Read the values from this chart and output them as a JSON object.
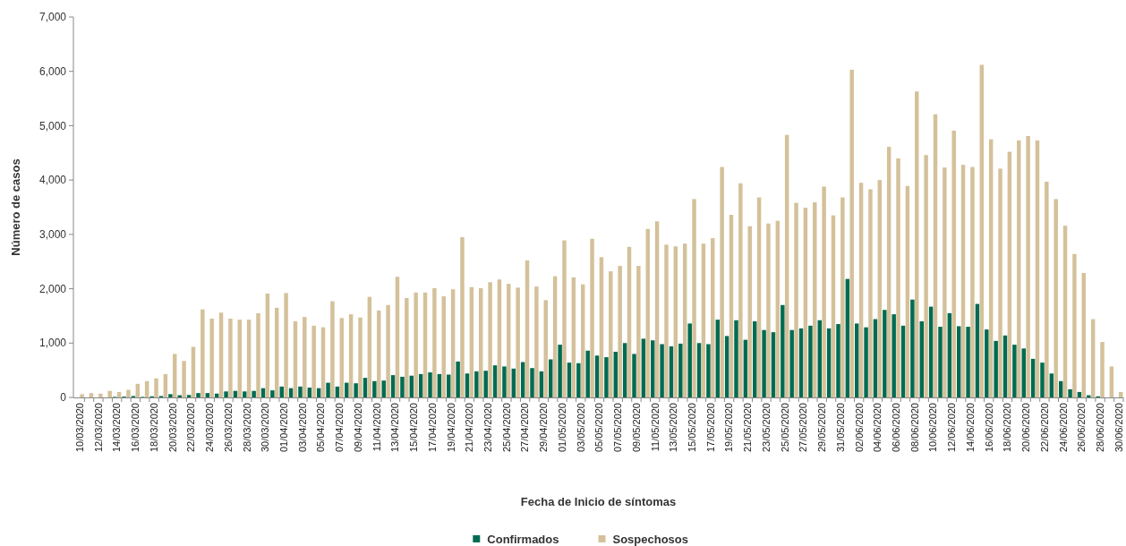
{
  "chart_data": {
    "type": "bar",
    "xlabel": "Fecha de Inicio de síntomas",
    "ylabel": "Número de casos",
    "categories": [
      "10/03/2020",
      null,
      "12/03/2020",
      null,
      "14/03/2020",
      null,
      "16/03/2020",
      null,
      "18/03/2020",
      null,
      "20/03/2020",
      null,
      "22/03/2020",
      null,
      "24/03/2020",
      null,
      "26/03/2020",
      null,
      "28/03/2020",
      null,
      "30/03/2020",
      null,
      "01/04/2020",
      null,
      "03/04/2020",
      null,
      "05/04/2020",
      null,
      "07/04/2020",
      null,
      "09/04/2020",
      null,
      "11/04/2020",
      null,
      "13/04/2020",
      null,
      "15/04/2020",
      null,
      "17/04/2020",
      null,
      "19/04/2020",
      null,
      "21/04/2020",
      null,
      "23/04/2020",
      null,
      "25/04/2020",
      null,
      "27/04/2020",
      null,
      "29/04/2020",
      null,
      "01/05/2020",
      null,
      "03/05/2020",
      null,
      "05/05/2020",
      null,
      "07/05/2020",
      null,
      "09/05/2020",
      null,
      "11/05/2020",
      null,
      "13/05/2020",
      null,
      "15/05/2020",
      null,
      "17/05/2020",
      null,
      "19/05/2020",
      null,
      "21/05/2020",
      null,
      "23/05/2020",
      null,
      "25/05/2020",
      null,
      "27/05/2020",
      null,
      "29/05/2020",
      null,
      "31/05/2020",
      null,
      "02/06/2020",
      null,
      "04/06/2020",
      null,
      "06/06/2020",
      null,
      "08/06/2020",
      null,
      "10/06/2020",
      null,
      "12/06/2020",
      null,
      "14/06/2020",
      null,
      "16/06/2020",
      null,
      "18/06/2020",
      null,
      "20/06/2020",
      null,
      "22/06/2020",
      null,
      "24/06/2020",
      null,
      "26/06/2020",
      null,
      "28/06/2020",
      null,
      "30/06/2020"
    ],
    "series": [
      {
        "name": "Confirmados",
        "color": "#006b52",
        "values": [
          0,
          0,
          0,
          0,
          10,
          15,
          25,
          10,
          20,
          25,
          60,
          40,
          45,
          80,
          80,
          70,
          110,
          120,
          110,
          120,
          170,
          130,
          200,
          170,
          200,
          180,
          170,
          270,
          200,
          270,
          260,
          360,
          300,
          310,
          410,
          380,
          400,
          430,
          460,
          430,
          420,
          660,
          440,
          480,
          490,
          590,
          570,
          530,
          650,
          540,
          480,
          700,
          970,
          640,
          630,
          860,
          770,
          740,
          840,
          1000,
          800,
          1080,
          1050,
          980,
          940,
          990,
          1360,
          1000,
          980,
          1430,
          1130,
          1420,
          1060,
          1400,
          1240,
          1200,
          1700,
          1240,
          1270,
          1320,
          1420,
          1270,
          1350,
          2180,
          1360,
          1290,
          1440,
          1610,
          1530,
          1320,
          1800,
          1400,
          1670,
          1300,
          1550,
          1310,
          1300,
          1720,
          1250,
          1040,
          1140,
          970,
          900,
          710,
          640,
          440,
          300,
          150,
          100,
          40,
          20,
          0,
          0
        ]
      },
      {
        "name": "Sospechosos",
        "color": "#d4c19a",
        "values": [
          60,
          80,
          70,
          120,
          100,
          140,
          250,
          300,
          350,
          430,
          800,
          670,
          930,
          1620,
          1450,
          1560,
          1450,
          1430,
          1430,
          1550,
          1910,
          1650,
          1920,
          1400,
          1480,
          1320,
          1290,
          1770,
          1460,
          1530,
          1470,
          1850,
          1600,
          1700,
          2220,
          1830,
          1930,
          1930,
          2010,
          1860,
          1990,
          2950,
          2030,
          2010,
          2120,
          2170,
          2090,
          2020,
          2520,
          2040,
          1790,
          2230,
          2890,
          2210,
          2080,
          2920,
          2580,
          2320,
          2420,
          2770,
          2420,
          3100,
          3240,
          2810,
          2780,
          2830,
          3650,
          2830,
          2930,
          4240,
          3360,
          3940,
          3150,
          3680,
          3200,
          3250,
          4830,
          3580,
          3490,
          3590,
          3880,
          3350,
          3680,
          6030,
          3950,
          3830,
          4000,
          4610,
          4400,
          3890,
          5630,
          4460,
          5210,
          4230,
          4910,
          4280,
          4240,
          6120,
          4750,
          4210,
          4520,
          4730,
          4810,
          4730,
          3970,
          3650,
          3160,
          2640,
          2290,
          1440,
          1020,
          570,
          100
        ]
      }
    ],
    "ylim": [
      0,
      7000
    ],
    "yticks": [
      0,
      {
        "value": 1000,
        "label": "1,000"
      },
      {
        "value": 2000,
        "label": "2,000"
      },
      {
        "value": 3000,
        "label": "3,000"
      },
      {
        "value": 4000,
        "label": "4,000"
      },
      {
        "value": 5000,
        "label": "5,000"
      },
      {
        "value": 6000,
        "label": "6,000"
      },
      {
        "value": 7000,
        "label": "7,000"
      }
    ],
    "grid": false,
    "legend": "bottom"
  }
}
